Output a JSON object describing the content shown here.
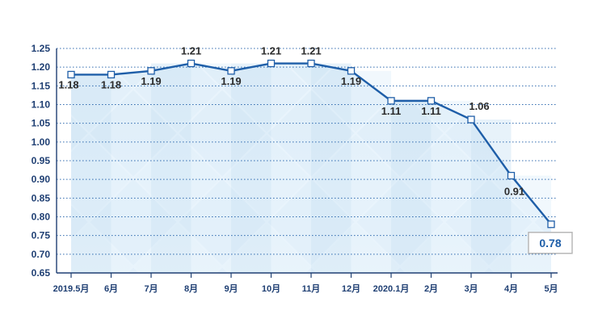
{
  "chart_data": {
    "type": "line",
    "categories": [
      "2019.5月",
      "6月",
      "7月",
      "8月",
      "9月",
      "10月",
      "11月",
      "12月",
      "2020.1月",
      "2月",
      "3月",
      "4月",
      "5月"
    ],
    "values": [
      1.18,
      1.18,
      1.19,
      1.21,
      1.19,
      1.21,
      1.21,
      1.19,
      1.11,
      1.11,
      1.06,
      0.91,
      0.78
    ],
    "data_labels": [
      "1.18",
      "1.18",
      "1.19",
      "1.21",
      "1.19",
      "1.21",
      "1.21",
      "1.19",
      "1.11",
      "1.11",
      "1.06",
      "0.91",
      "0.78"
    ],
    "y_ticks": [
      "0.65",
      "0.70",
      "0.75",
      "0.80",
      "0.85",
      "0.90",
      "0.95",
      "1.00",
      "1.05",
      "1.10",
      "1.15",
      "1.20",
      "1.25"
    ],
    "ylim": [
      0.65,
      1.25
    ],
    "grid": true,
    "title": "",
    "xlabel": "",
    "ylabel": ""
  },
  "colors": {
    "line": "#1e5ea8",
    "grid": "#1e5ea8",
    "axis": "#1f3f73",
    "marker_fill": "#ffffff",
    "callout_border": "#b8b8b8"
  }
}
